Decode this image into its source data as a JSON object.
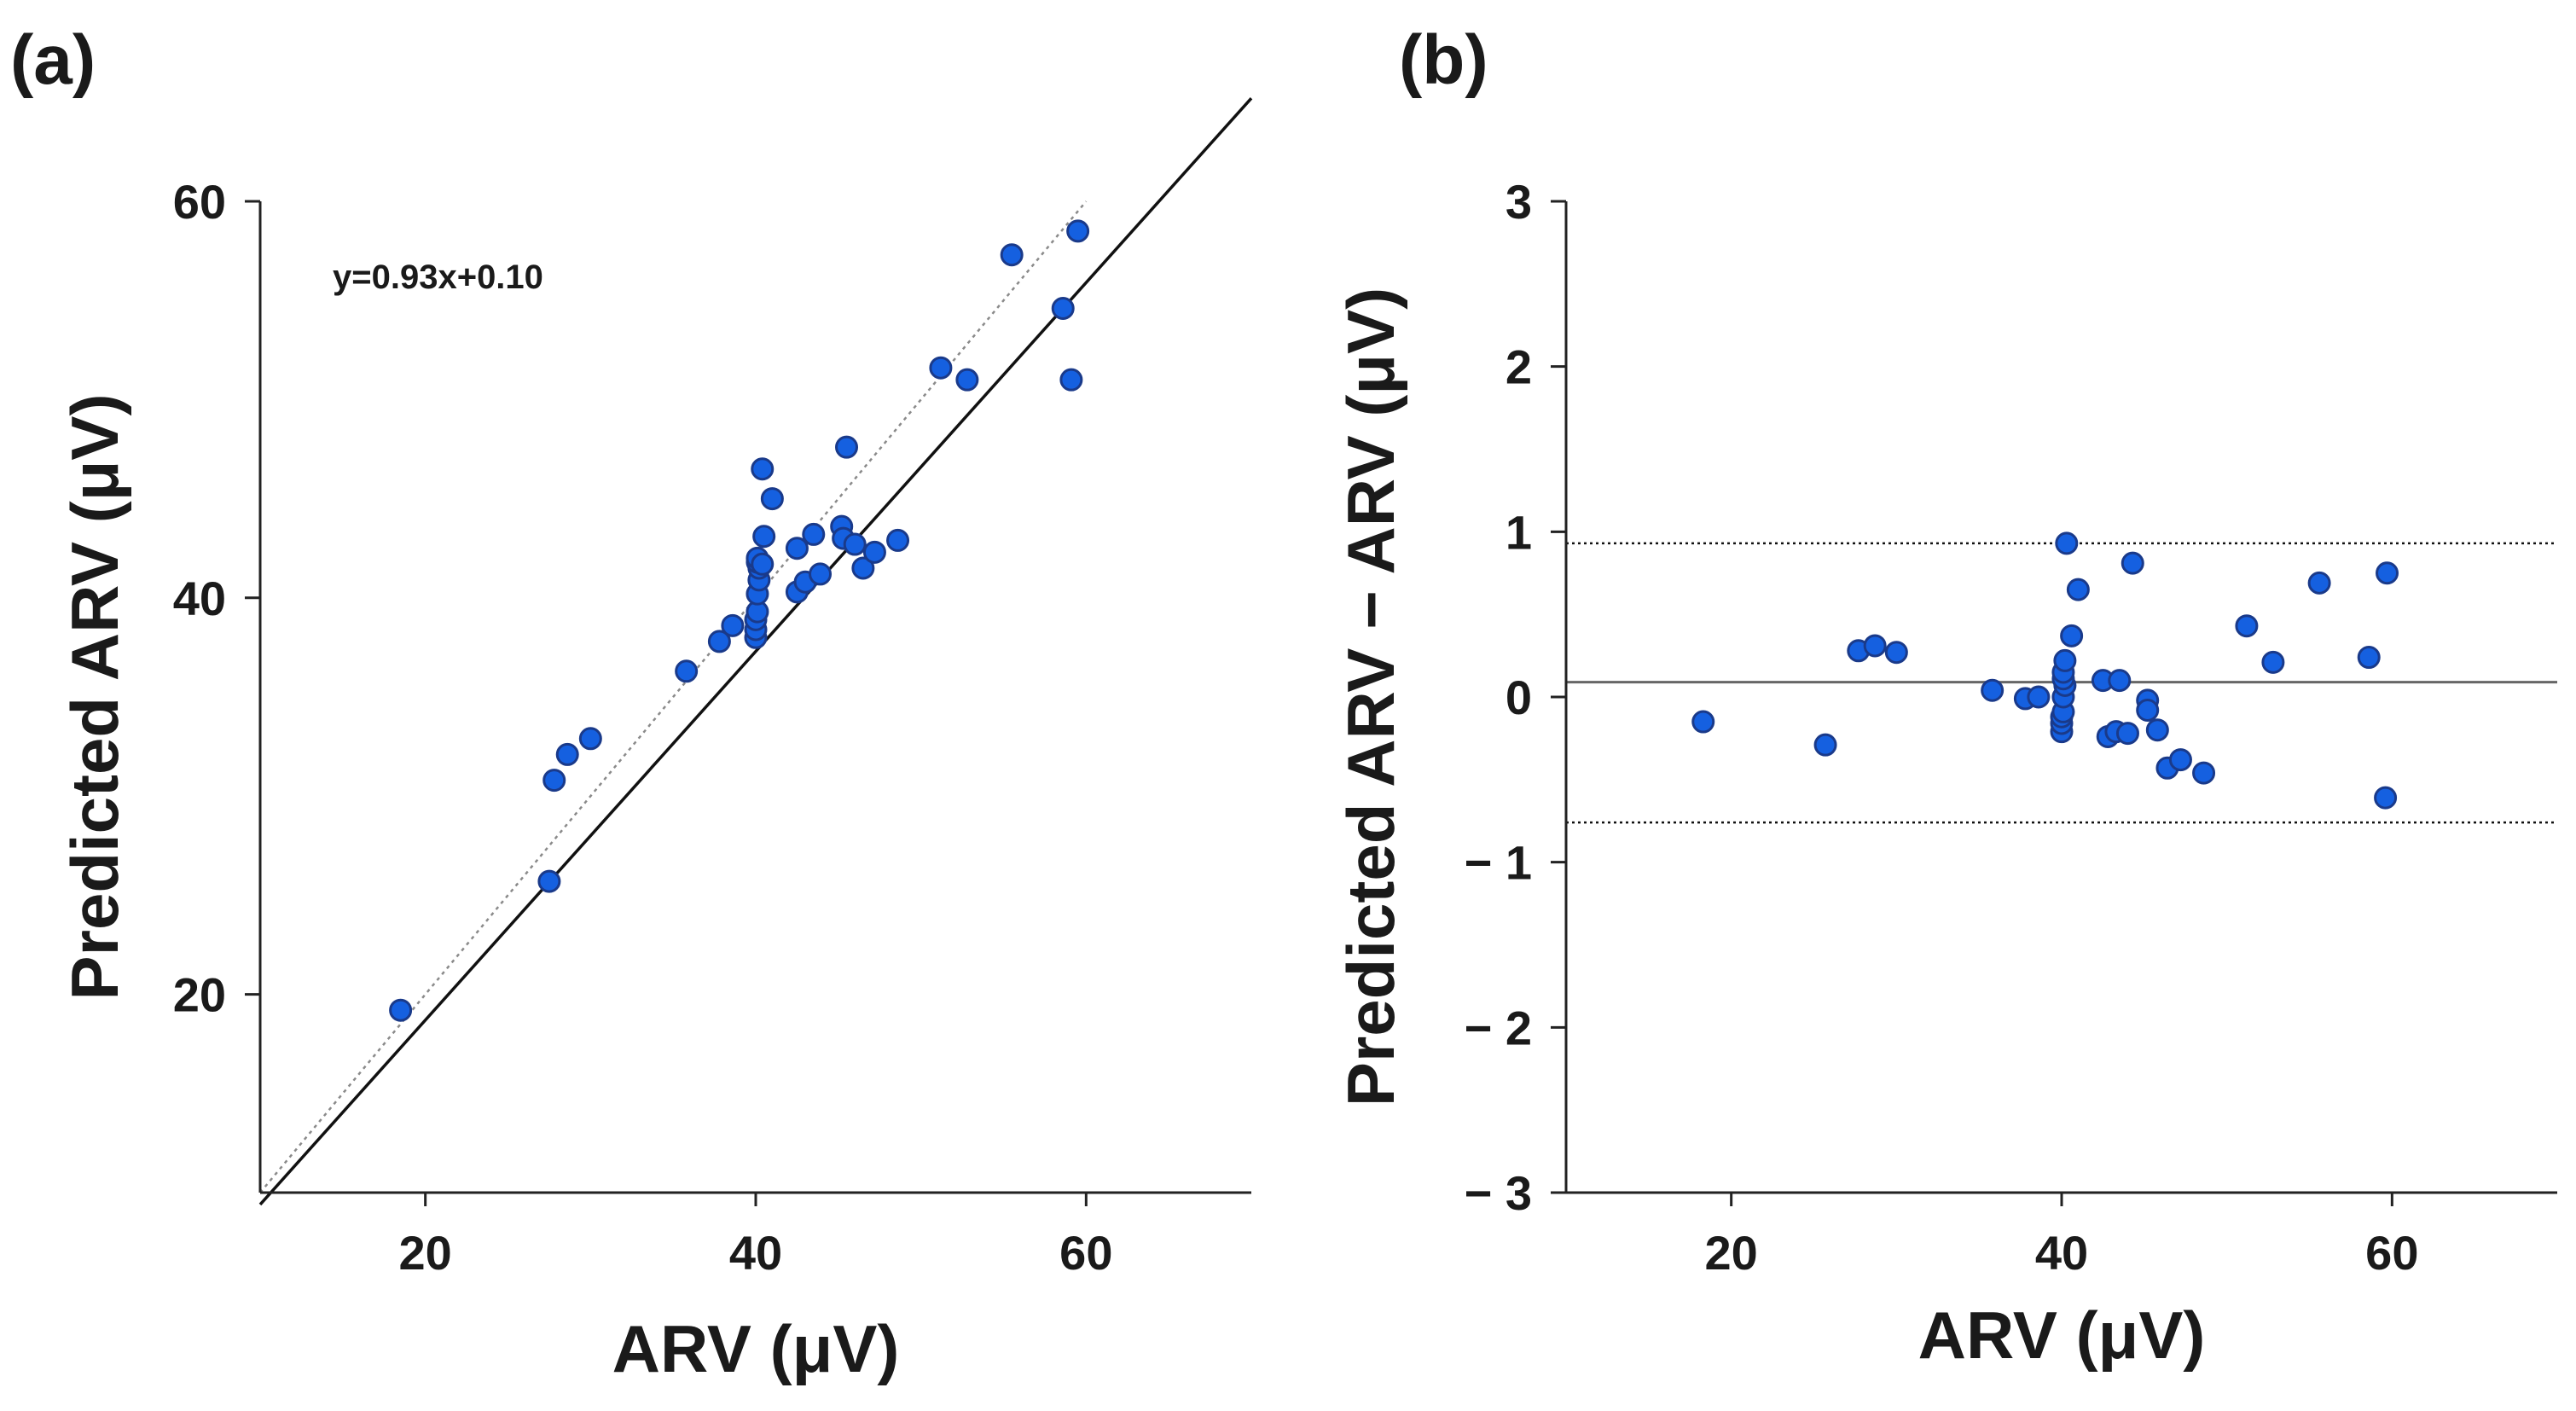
{
  "colors": {
    "marker_fill": "#1560e0",
    "marker_edge": "#1a3a8a",
    "axis": "#222222",
    "fit_line": "#111111",
    "identity_line": "#8a8a8a",
    "mean_line": "#666666",
    "loa_line": "#111111"
  },
  "chart_data": [
    {
      "panel_label": "(a)",
      "type": "scatter",
      "xlabel": "ARV (μV)",
      "ylabel": "Predicted ARV (μV)",
      "xlim": [
        10,
        70
      ],
      "ylim": [
        10,
        60
      ],
      "xticks": [
        20,
        40,
        60
      ],
      "yticks": [
        20,
        40,
        60
      ],
      "xtick_labels": [
        "20",
        "40",
        "60"
      ],
      "ytick_labels": [
        "20",
        "40",
        "60"
      ],
      "annotation": "y=0.93x+0.10",
      "fit": {
        "slope": 0.93,
        "intercept": 0.1
      },
      "identity_line": true,
      "points": [
        [
          18.5,
          19.2
        ],
        [
          27.5,
          25.7
        ],
        [
          27.8,
          30.8
        ],
        [
          28.6,
          32.1
        ],
        [
          30.0,
          32.9
        ],
        [
          35.8,
          36.3
        ],
        [
          37.8,
          37.8
        ],
        [
          38.6,
          38.6
        ],
        [
          40.0,
          38.0
        ],
        [
          40.0,
          38.4
        ],
        [
          40.0,
          38.9
        ],
        [
          40.1,
          39.3
        ],
        [
          40.1,
          40.2
        ],
        [
          40.2,
          40.9
        ],
        [
          40.2,
          41.5
        ],
        [
          40.1,
          41.8
        ],
        [
          40.1,
          42.0
        ],
        [
          40.4,
          41.7
        ],
        [
          40.4,
          46.5
        ],
        [
          40.5,
          43.1
        ],
        [
          41.0,
          45.0
        ],
        [
          42.5,
          40.3
        ],
        [
          43.0,
          40.8
        ],
        [
          42.5,
          42.5
        ],
        [
          43.5,
          43.2
        ],
        [
          43.9,
          41.2
        ],
        [
          45.2,
          43.6
        ],
        [
          45.3,
          43.0
        ],
        [
          45.5,
          47.6
        ],
        [
          46.0,
          42.7
        ],
        [
          46.5,
          41.5
        ],
        [
          47.2,
          42.3
        ],
        [
          48.6,
          42.9
        ],
        [
          51.2,
          51.6
        ],
        [
          52.8,
          51.0
        ],
        [
          55.5,
          57.3
        ],
        [
          58.6,
          54.6
        ],
        [
          59.1,
          51.0
        ],
        [
          59.5,
          58.5
        ]
      ]
    },
    {
      "panel_label": "(b)",
      "type": "scatter",
      "xlabel": "ARV (μV)",
      "ylabel": "Predicted ARV − ARV (μV)",
      "xlim": [
        10,
        70
      ],
      "ylim": [
        -3,
        3
      ],
      "xticks": [
        20,
        40,
        60
      ],
      "yticks": [
        3,
        2,
        1,
        0,
        -1,
        -2,
        -3
      ],
      "xtick_labels": [
        "20",
        "40",
        "60"
      ],
      "ytick_labels": [
        "3",
        "2",
        "1",
        "0",
        "− 1",
        "− 2",
        "− 3"
      ],
      "mean_difference": 0.09,
      "limits_of_agreement": [
        0.93,
        -0.76
      ],
      "points": [
        [
          18.3,
          -0.15
        ],
        [
          25.7,
          -0.29
        ],
        [
          27.7,
          0.28
        ],
        [
          28.7,
          0.31
        ],
        [
          30.0,
          0.27
        ],
        [
          35.8,
          0.04
        ],
        [
          37.8,
          -0.01
        ],
        [
          38.6,
          0.0
        ],
        [
          40.0,
          -0.21
        ],
        [
          40.0,
          -0.16
        ],
        [
          40.0,
          -0.12
        ],
        [
          40.1,
          -0.09
        ],
        [
          40.1,
          0.0
        ],
        [
          40.2,
          0.07
        ],
        [
          40.1,
          0.11
        ],
        [
          40.1,
          0.15
        ],
        [
          40.2,
          0.22
        ],
        [
          40.3,
          0.93
        ],
        [
          40.6,
          0.37
        ],
        [
          41.0,
          0.65
        ],
        [
          42.5,
          0.1
        ],
        [
          42.8,
          -0.24
        ],
        [
          43.3,
          -0.21
        ],
        [
          43.5,
          0.1
        ],
        [
          44.0,
          -0.22
        ],
        [
          44.3,
          0.81
        ],
        [
          45.2,
          -0.02
        ],
        [
          45.2,
          -0.08
        ],
        [
          45.8,
          -0.2
        ],
        [
          46.4,
          -0.43
        ],
        [
          47.2,
          -0.38
        ],
        [
          48.6,
          -0.46
        ],
        [
          51.2,
          0.43
        ],
        [
          52.8,
          0.21
        ],
        [
          55.6,
          0.69
        ],
        [
          58.6,
          0.24
        ],
        [
          59.6,
          -0.61
        ],
        [
          59.7,
          0.75
        ]
      ]
    }
  ]
}
